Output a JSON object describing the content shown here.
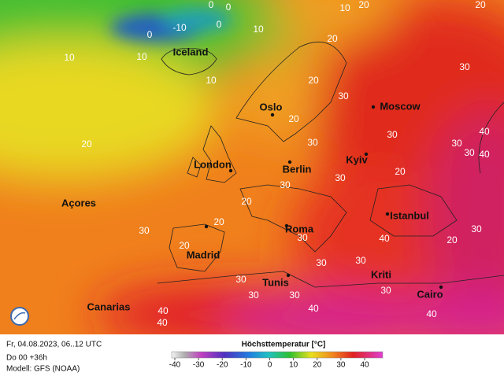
{
  "map": {
    "cities": [
      "Iceland",
      "Oslo",
      "Moscow",
      "London",
      "Berlin",
      "Kyiv",
      "Açores",
      "Istanbul",
      "Roma",
      "Madrid",
      "Tunis",
      "Kriti",
      "Canarias",
      "Cairo"
    ],
    "contour_labels": [
      0,
      0,
      10,
      20,
      20,
      0,
      -10,
      0,
      10,
      20,
      10,
      10,
      10,
      20,
      30,
      30,
      20,
      20,
      30,
      30,
      30,
      30,
      20,
      30,
      30,
      20,
      20,
      20,
      30,
      20,
      30,
      40,
      30,
      30,
      30,
      30,
      30,
      30,
      30,
      40,
      40,
      40,
      40,
      40,
      40
    ]
  },
  "footer": {
    "date": "Fr, 04.08.2023, 06..12 UTC",
    "run": "Do 00 +36h",
    "model": "Modell: GFS (NOAA)"
  },
  "colorbar": {
    "title": "Höchsttemperatur [°C]",
    "ticks": [
      -40,
      -30,
      -20,
      -10,
      0,
      10,
      20,
      30,
      40
    ]
  }
}
